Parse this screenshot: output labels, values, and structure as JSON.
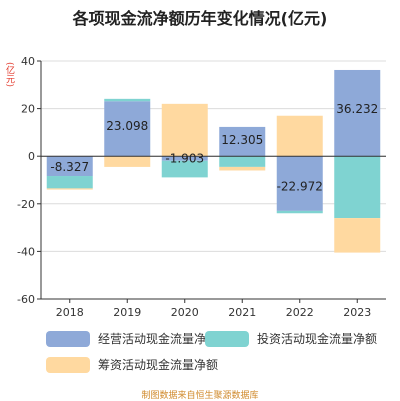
{
  "chart_data": {
    "type": "bar",
    "stacked": true,
    "title": "各项现金流净额历年变化情况(亿元)",
    "unit_label": "(亿元)",
    "categories": [
      "2018",
      "2019",
      "2020",
      "2021",
      "2022",
      "2023"
    ],
    "ylim": [
      -60,
      40
    ],
    "yticks": [
      40,
      20,
      0,
      -20,
      -40,
      -60
    ],
    "grid": true,
    "legend_position": "bottom",
    "series": [
      {
        "name": "经营活动现金流量净额",
        "color": "#8ea9d8",
        "values": [
          -8.327,
          23.098,
          -1.903,
          12.305,
          -22.972,
          36.232
        ]
      },
      {
        "name": "投资活动现金流量净额",
        "color": "#7fd3d1",
        "values": [
          -5.2,
          1.0,
          -7.0,
          -4.5,
          -1.0,
          -26.0
        ]
      },
      {
        "name": "筹资活动现金流量净额",
        "color": "#ffd9a0",
        "values": [
          -0.5,
          -4.5,
          22.0,
          -1.5,
          17.0,
          -14.5
        ]
      }
    ],
    "data_labels": [
      "-8.327",
      "23.098",
      "-1.903",
      "12.305",
      "-22.972",
      "36.232"
    ]
  },
  "source": "制图数据来自恒生聚源数据库"
}
